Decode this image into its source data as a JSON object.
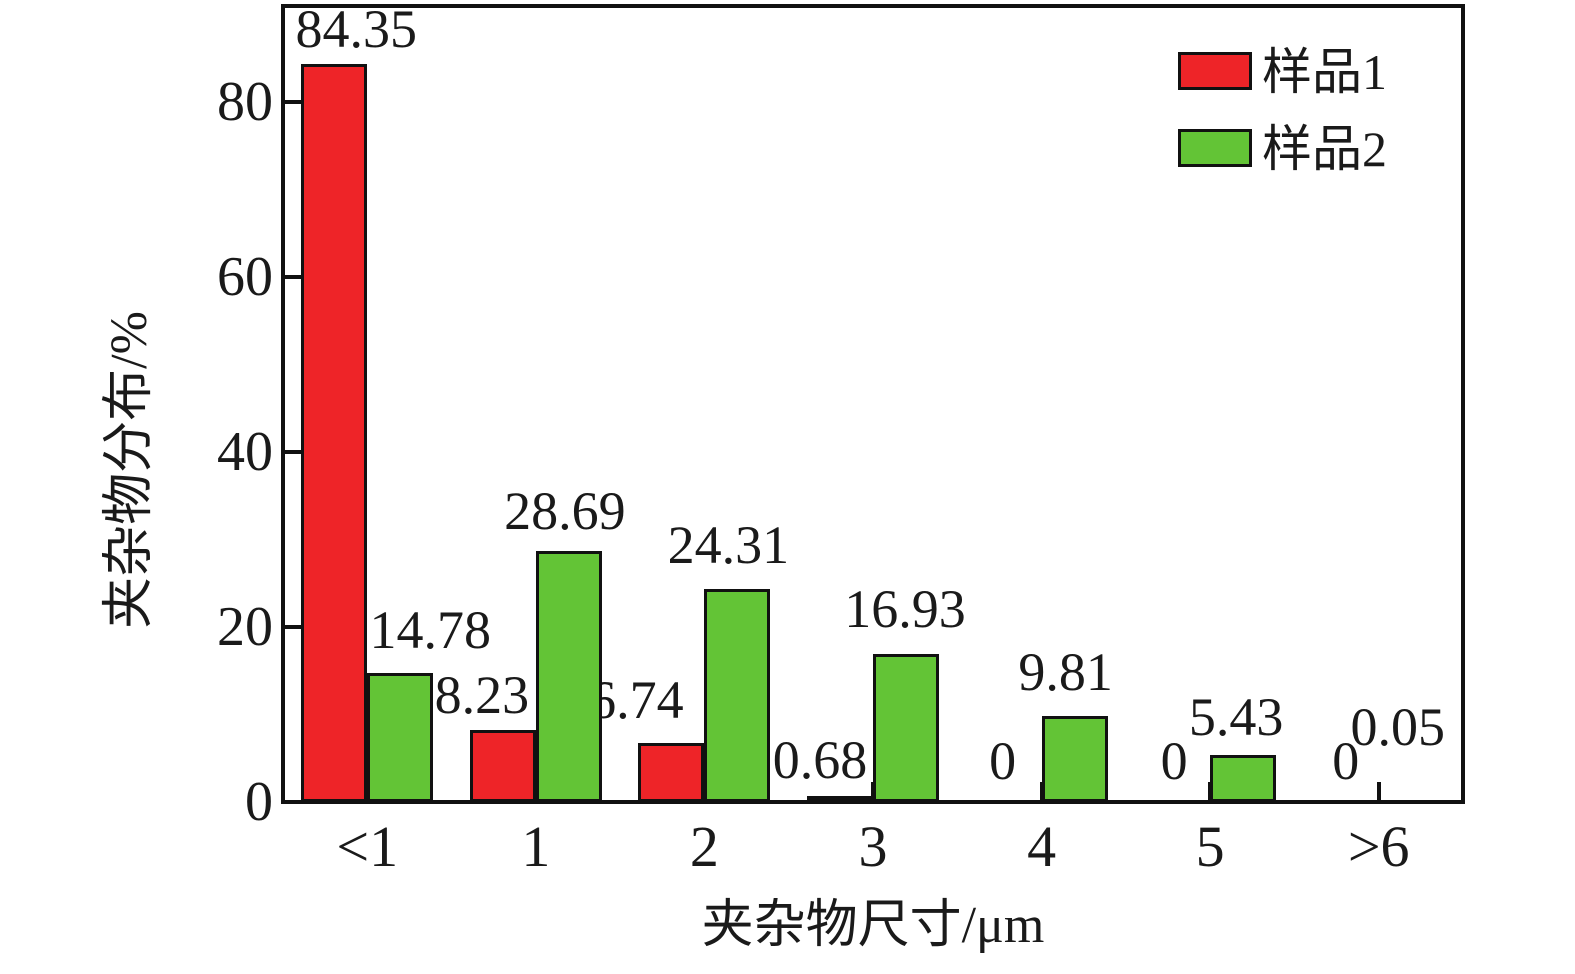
{
  "chart_data": {
    "type": "bar",
    "title": "",
    "categories": [
      "<1",
      "1",
      "2",
      "3",
      "4",
      "5",
      ">6"
    ],
    "series": [
      {
        "name": "样品1",
        "color": "#EE2428",
        "values": [
          84.35,
          8.23,
          6.74,
          0.68,
          0,
          0,
          0
        ]
      },
      {
        "name": "样品2",
        "color": "#63C436",
        "values": [
          14.78,
          28.69,
          24.31,
          16.93,
          9.81,
          5.43,
          0.05
        ]
      }
    ],
    "value_labels": {
      "sample1": [
        "84.35",
        "8.23",
        "6.74",
        "0.68",
        "0",
        "0",
        "0"
      ],
      "sample2": [
        "14.78",
        "28.69",
        "24.31",
        "16.93",
        "9.81",
        "5.43",
        "0.05"
      ]
    },
    "xlabel": "夹杂物尺寸/μm",
    "ylabel": "夹杂物分布/%",
    "yticks": [
      0,
      20,
      40,
      60,
      80
    ],
    "ylim": [
      0,
      91
    ],
    "grid": false,
    "legend_position": "top-right",
    "axis_color": "#111111",
    "background_color": "#ffffff"
  }
}
